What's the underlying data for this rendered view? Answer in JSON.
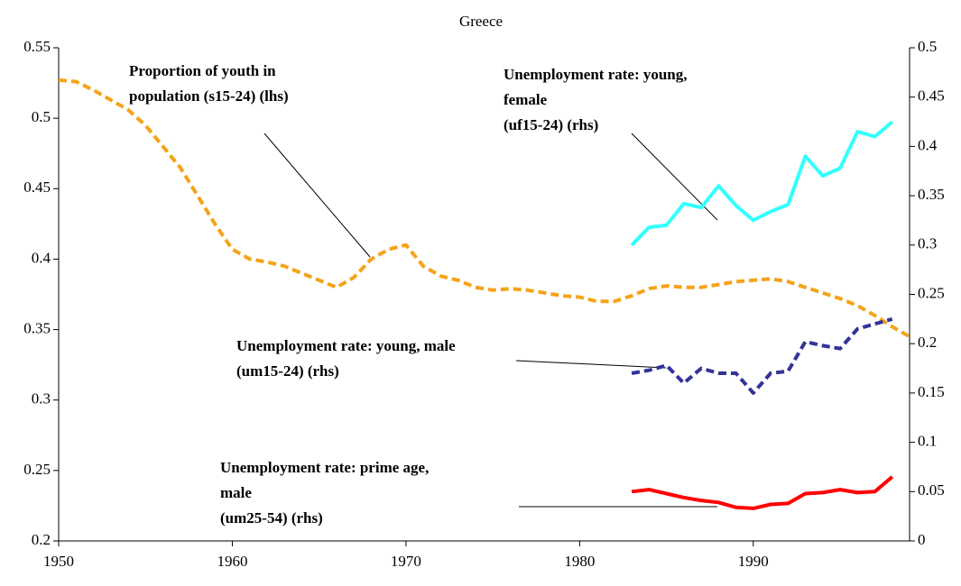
{
  "chart_data": {
    "type": "line",
    "title": "Greece",
    "x": [
      1950,
      1951,
      1952,
      1953,
      1954,
      1955,
      1956,
      1957,
      1958,
      1959,
      1960,
      1961,
      1962,
      1963,
      1964,
      1965,
      1966,
      1967,
      1968,
      1969,
      1970,
      1971,
      1972,
      1973,
      1974,
      1975,
      1976,
      1977,
      1978,
      1979,
      1980,
      1981,
      1982,
      1983,
      1984,
      1985,
      1986,
      1987,
      1988,
      1989,
      1990,
      1991,
      1992,
      1993,
      1994,
      1995,
      1996,
      1997,
      1998,
      1999
    ],
    "xlim": [
      1950,
      1999
    ],
    "xticks": [
      1950,
      1960,
      1970,
      1980,
      1990
    ],
    "ylim": [
      0.2,
      0.55
    ],
    "yticks": [
      0.2,
      0.25,
      0.3,
      0.35,
      0.4,
      0.45,
      0.5,
      0.55
    ],
    "y2lim": [
      0,
      0.5
    ],
    "y2ticks": [
      0,
      0.05,
      0.1,
      0.15,
      0.2,
      0.25,
      0.3,
      0.35,
      0.4,
      0.45,
      0.5
    ],
    "series": [
      {
        "name": "s15-24",
        "color": "#f5a31a",
        "dash": true,
        "axis": "y",
        "values": [
          0.527,
          0.526,
          0.52,
          0.513,
          0.506,
          0.495,
          0.48,
          0.465,
          0.445,
          0.425,
          0.407,
          0.4,
          0.398,
          0.395,
          0.39,
          0.385,
          0.38,
          0.387,
          0.4,
          0.407,
          0.41,
          0.395,
          0.388,
          0.385,
          0.38,
          0.378,
          0.379,
          0.378,
          0.376,
          0.374,
          0.373,
          0.37,
          0.37,
          0.374,
          0.379,
          0.381,
          0.38,
          0.38,
          0.382,
          0.384,
          0.385,
          0.386,
          0.384,
          0.38,
          0.376,
          0.372,
          0.367,
          0.36,
          0.352,
          0.345
        ]
      },
      {
        "name": "uf15-24",
        "color": "#33ffff",
        "dash": false,
        "axis": "y2",
        "values": [
          null,
          null,
          null,
          null,
          null,
          null,
          null,
          null,
          null,
          null,
          null,
          null,
          null,
          null,
          null,
          null,
          null,
          null,
          null,
          null,
          null,
          null,
          null,
          null,
          null,
          null,
          null,
          null,
          null,
          null,
          null,
          null,
          null,
          0.3,
          0.318,
          0.32,
          0.342,
          0.338,
          0.36,
          0.34,
          0.325,
          0.334,
          0.341,
          0.39,
          0.37,
          0.378,
          0.415,
          0.41,
          0.425,
          null
        ]
      },
      {
        "name": "um15-24",
        "color": "#333399",
        "dash": true,
        "axis": "y2",
        "values": [
          null,
          null,
          null,
          null,
          null,
          null,
          null,
          null,
          null,
          null,
          null,
          null,
          null,
          null,
          null,
          null,
          null,
          null,
          null,
          null,
          null,
          null,
          null,
          null,
          null,
          null,
          null,
          null,
          null,
          null,
          null,
          null,
          null,
          0.17,
          0.173,
          0.178,
          0.16,
          0.175,
          0.17,
          0.17,
          0.15,
          0.17,
          0.172,
          0.202,
          0.198,
          0.195,
          0.215,
          0.22,
          0.225,
          null
        ]
      },
      {
        "name": "um25-54",
        "color": "#ff0000",
        "dash": false,
        "axis": "y2",
        "values": [
          null,
          null,
          null,
          null,
          null,
          null,
          null,
          null,
          null,
          null,
          null,
          null,
          null,
          null,
          null,
          null,
          null,
          null,
          null,
          null,
          null,
          null,
          null,
          null,
          null,
          null,
          null,
          null,
          null,
          null,
          null,
          null,
          null,
          0.05,
          0.052,
          0.048,
          0.044,
          0.041,
          0.039,
          0.034,
          0.033,
          0.037,
          0.038,
          0.048,
          0.049,
          0.052,
          0.049,
          0.05,
          0.065,
          null
        ]
      }
    ],
    "annotations": [
      {
        "lines": [
          "Proportion of youth in",
          "population (s15-24) (lhs)"
        ]
      },
      {
        "lines": [
          "Unemployment rate: young,",
          "female",
          "(uf15-24) (rhs)"
        ]
      },
      {
        "lines": [
          "Unemployment rate: young, male",
          "(um15-24) (rhs)"
        ]
      },
      {
        "lines": [
          "Unemployment rate: prime age,",
          "male",
          "(um25-54) (rhs)"
        ]
      }
    ]
  }
}
